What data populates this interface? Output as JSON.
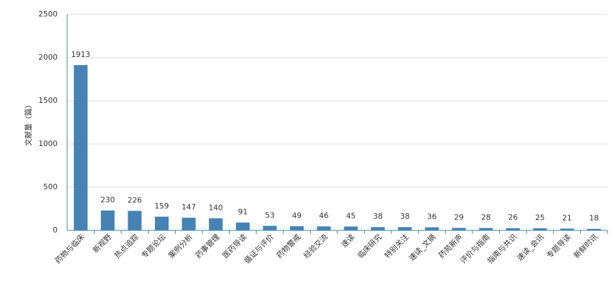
{
  "chart_data": {
    "type": "bar",
    "y_label": "文献量（篇）",
    "categories": [
      "药物与临床",
      "新视野",
      "热点追踪",
      "专题论坛",
      "案例分析",
      "药事管理",
      "医药导读",
      "循证与评价",
      "药物警戒",
      "经验交流",
      "速读",
      "临床研究",
      "特别关注",
      "速读_文摘",
      "药苑新声",
      "评价与指南",
      "指南与共识",
      "速读_会讯",
      "专题导读",
      "新鲜时讯"
    ],
    "values": [
      1913,
      230,
      226,
      159,
      147,
      140,
      91,
      53,
      49,
      46,
      45,
      38,
      38,
      36,
      29,
      28,
      26,
      25,
      21,
      18
    ],
    "color": "#4682b4",
    "ylim": [
      0,
      2500
    ],
    "yticks": [
      0,
      500,
      1000,
      1500,
      2000,
      2500
    ],
    "grid": true
  }
}
